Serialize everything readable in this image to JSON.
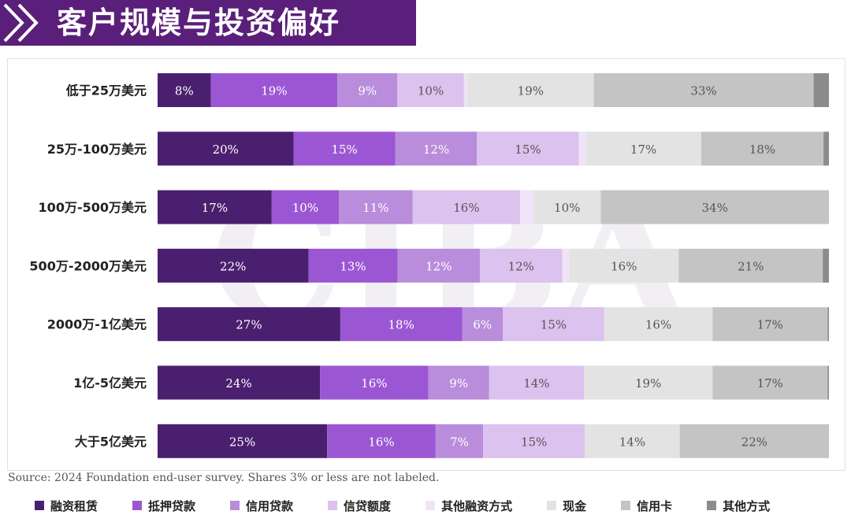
{
  "page": {
    "title": "客户规模与投资偏好",
    "source": "Source: 2024 Foundation end-user survey. Shares 3% or less are not labeled."
  },
  "chart_data": {
    "type": "bar",
    "orientation": "horizontal",
    "stacked": true,
    "percent": true,
    "xlim": [
      0,
      100
    ],
    "grid": false,
    "legend_position": "bottom",
    "categories": [
      "低于25万美元",
      "25万-100万美元",
      "100万-500万美元",
      "500万-2000万美元",
      "2000万-1亿美元",
      "1亿-5亿美元",
      "大于5亿美元"
    ],
    "series": [
      {
        "name": "融资租赁",
        "color": "#4b1f6f",
        "values": [
          8,
          20,
          17,
          22,
          27,
          24,
          25
        ]
      },
      {
        "name": "抵押贷款",
        "color": "#9b57d3",
        "values": [
          19,
          15,
          10,
          13,
          18,
          16,
          16
        ]
      },
      {
        "name": "信用贷款",
        "color": "#b98ddb",
        "values": [
          9,
          12,
          11,
          12,
          6,
          9,
          7
        ]
      },
      {
        "name": "信贷额度",
        "color": "#dcc2ee",
        "values": [
          10,
          15,
          16,
          12,
          15,
          14,
          15
        ]
      },
      {
        "name": "其他融资方式",
        "color": "#efe4f7",
        "values": [
          0.5,
          1,
          2,
          1,
          0,
          0,
          0
        ]
      },
      {
        "name": "现金",
        "color": "#e3e3e3",
        "values": [
          19,
          17,
          10,
          16,
          16,
          19,
          14
        ]
      },
      {
        "name": "信用卡",
        "color": "#c4c4c4",
        "values": [
          33,
          18,
          34,
          21,
          17,
          17,
          22
        ]
      },
      {
        "name": "其他方式",
        "color": "#8c8c8c",
        "values": [
          2.3,
          0.8,
          0,
          0.9,
          0.2,
          0.2,
          0
        ]
      }
    ],
    "label_threshold": 3
  }
}
